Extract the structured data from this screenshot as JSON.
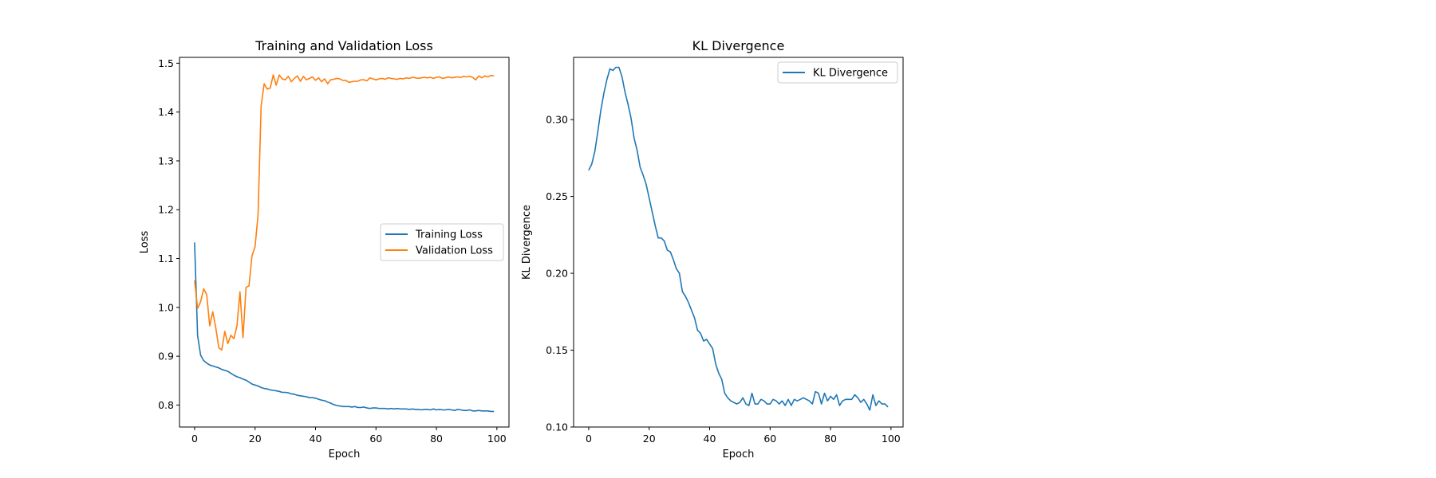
{
  "chart_data": [
    {
      "type": "line",
      "title": "Training and Validation Loss",
      "xlabel": "Epoch",
      "ylabel": "Loss",
      "xlim": [
        -5,
        104
      ],
      "ylim": [
        0.755,
        1.512
      ],
      "xticks": [
        0,
        20,
        40,
        60,
        80,
        100
      ],
      "yticks": [
        0.8,
        0.9,
        1.0,
        1.1,
        1.2,
        1.3,
        1.4,
        1.5
      ],
      "tick_labels_x": [
        "0",
        "20",
        "40",
        "60",
        "80",
        "100"
      ],
      "tick_labels_y": [
        "0.8",
        "0.9",
        "1.0",
        "1.1",
        "1.2",
        "1.3",
        "1.4",
        "1.5"
      ],
      "grid": false,
      "legend_position": "center-right",
      "series": [
        {
          "name": "Training Loss",
          "color": "#1f77b4",
          "values": [
            1.133,
            0.942,
            0.902,
            0.891,
            0.886,
            0.882,
            0.88,
            0.878,
            0.876,
            0.873,
            0.871,
            0.869,
            0.865,
            0.861,
            0.858,
            0.856,
            0.853,
            0.851,
            0.847,
            0.843,
            0.841,
            0.839,
            0.836,
            0.834,
            0.833,
            0.831,
            0.83,
            0.829,
            0.828,
            0.826,
            0.826,
            0.825,
            0.823,
            0.822,
            0.82,
            0.819,
            0.818,
            0.817,
            0.815,
            0.815,
            0.814,
            0.812,
            0.81,
            0.809,
            0.806,
            0.804,
            0.801,
            0.799,
            0.798,
            0.797,
            0.797,
            0.797,
            0.796,
            0.797,
            0.795,
            0.795,
            0.796,
            0.794,
            0.793,
            0.794,
            0.794,
            0.793,
            0.793,
            0.793,
            0.792,
            0.793,
            0.792,
            0.793,
            0.792,
            0.792,
            0.792,
            0.791,
            0.792,
            0.791,
            0.791,
            0.79,
            0.791,
            0.791,
            0.79,
            0.792,
            0.79,
            0.791,
            0.79,
            0.79,
            0.791,
            0.79,
            0.789,
            0.791,
            0.79,
            0.789,
            0.789,
            0.79,
            0.788,
            0.788,
            0.789,
            0.788,
            0.788,
            0.788,
            0.787,
            0.787
          ]
        },
        {
          "name": "Validation Loss",
          "color": "#ff7f0e",
          "values": [
            1.055,
            0.998,
            1.012,
            1.038,
            1.026,
            0.962,
            0.991,
            0.958,
            0.917,
            0.913,
            0.951,
            0.926,
            0.943,
            0.936,
            0.962,
            1.032,
            0.938,
            1.041,
            1.044,
            1.106,
            1.124,
            1.19,
            1.412,
            1.458,
            1.447,
            1.449,
            1.476,
            1.455,
            1.476,
            1.468,
            1.466,
            1.473,
            1.462,
            1.469,
            1.474,
            1.463,
            1.473,
            1.466,
            1.469,
            1.472,
            1.465,
            1.47,
            1.462,
            1.468,
            1.458,
            1.466,
            1.467,
            1.469,
            1.468,
            1.465,
            1.465,
            1.461,
            1.462,
            1.463,
            1.463,
            1.466,
            1.466,
            1.464,
            1.47,
            1.468,
            1.466,
            1.468,
            1.469,
            1.467,
            1.47,
            1.469,
            1.468,
            1.467,
            1.469,
            1.468,
            1.47,
            1.469,
            1.471,
            1.47,
            1.469,
            1.47,
            1.471,
            1.47,
            1.471,
            1.469,
            1.471,
            1.472,
            1.469,
            1.47,
            1.472,
            1.47,
            1.471,
            1.472,
            1.471,
            1.473,
            1.472,
            1.473,
            1.471,
            1.466,
            1.474,
            1.47,
            1.474,
            1.472,
            1.475,
            1.474
          ]
        }
      ]
    },
    {
      "type": "line",
      "title": "KL Divergence",
      "xlabel": "Epoch",
      "ylabel": "KL Divergence",
      "xlim": [
        -5,
        104
      ],
      "ylim": [
        0.1,
        0.3405
      ],
      "xticks": [
        0,
        20,
        40,
        60,
        80,
        100
      ],
      "yticks": [
        0.1,
        0.15,
        0.2,
        0.25,
        0.3
      ],
      "tick_labels_x": [
        "0",
        "20",
        "40",
        "60",
        "80",
        "100"
      ],
      "tick_labels_y": [
        "0.10",
        "0.15",
        "0.20",
        "0.25",
        "0.30"
      ],
      "grid": false,
      "legend_position": "top-right",
      "series": [
        {
          "name": "KL Divergence",
          "color": "#1f77b4",
          "values": [
            0.267,
            0.271,
            0.279,
            0.292,
            0.306,
            0.317,
            0.326,
            0.333,
            0.332,
            0.334,
            0.334,
            0.328,
            0.318,
            0.31,
            0.301,
            0.288,
            0.28,
            0.269,
            0.264,
            0.258,
            0.249,
            0.24,
            0.231,
            0.223,
            0.223,
            0.221,
            0.215,
            0.214,
            0.209,
            0.203,
            0.2,
            0.188,
            0.185,
            0.181,
            0.176,
            0.171,
            0.163,
            0.161,
            0.156,
            0.157,
            0.154,
            0.151,
            0.141,
            0.135,
            0.131,
            0.122,
            0.119,
            0.117,
            0.116,
            0.115,
            0.116,
            0.119,
            0.115,
            0.114,
            0.122,
            0.115,
            0.115,
            0.118,
            0.117,
            0.115,
            0.115,
            0.118,
            0.117,
            0.115,
            0.117,
            0.114,
            0.118,
            0.114,
            0.118,
            0.117,
            0.118,
            0.119,
            0.118,
            0.117,
            0.115,
            0.123,
            0.122,
            0.115,
            0.122,
            0.117,
            0.12,
            0.118,
            0.121,
            0.114,
            0.117,
            0.118,
            0.118,
            0.118,
            0.121,
            0.119,
            0.116,
            0.118,
            0.115,
            0.111,
            0.121,
            0.114,
            0.117,
            0.115,
            0.115,
            0.113
          ]
        }
      ]
    }
  ]
}
